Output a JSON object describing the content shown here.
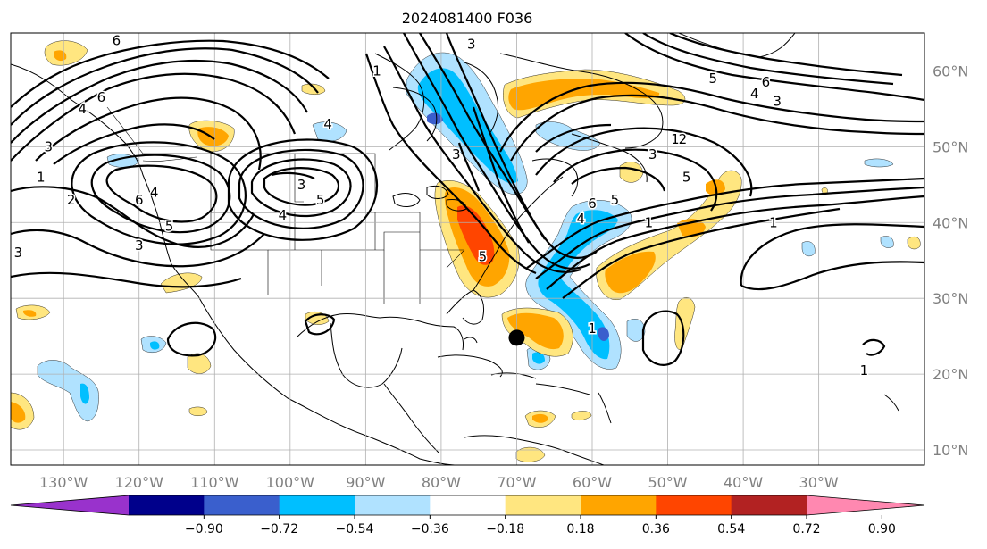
{
  "title": "2024081400 F036",
  "map": {
    "lon_range": [
      -137,
      -16
    ],
    "lat_range": [
      8,
      65
    ],
    "grid": true,
    "lon_labels": [
      {
        "lon": -130,
        "text": "130°W"
      },
      {
        "lon": -120,
        "text": "120°W"
      },
      {
        "lon": -110,
        "text": "110°W"
      },
      {
        "lon": -100,
        "text": "100°W"
      },
      {
        "lon": -90,
        "text": "90°W"
      },
      {
        "lon": -80,
        "text": "80°W"
      },
      {
        "lon": -70,
        "text": "70°W"
      },
      {
        "lon": -60,
        "text": "60°W"
      },
      {
        "lon": -50,
        "text": "50°W"
      },
      {
        "lon": -40,
        "text": "40°W"
      },
      {
        "lon": -30,
        "text": "30°W"
      }
    ],
    "lat_labels": [
      {
        "lat": 10,
        "text": "10°N"
      },
      {
        "lat": 20,
        "text": "20°N"
      },
      {
        "lat": 30,
        "text": "30°N"
      },
      {
        "lat": 40,
        "text": "40°N"
      },
      {
        "lat": 50,
        "text": "50°N"
      },
      {
        "lat": 60,
        "text": "60°N"
      }
    ],
    "storm_marker": {
      "lon": -70,
      "lat": 24.8
    }
  },
  "colorbar": {
    "ticks": [
      "−0.90",
      "−0.72",
      "−0.54",
      "−0.36",
      "−0.18",
      "0.18",
      "0.36",
      "0.54",
      "0.72",
      "0.90"
    ],
    "colors": [
      "#9932cc",
      "#00008b",
      "#3a5fcd",
      "#00bfff",
      "#b0e2ff",
      "#ffffff",
      "#ffe680",
      "#ffa500",
      "#ff4500",
      "#b22222",
      "#ff88b0"
    ]
  },
  "contour_labels": [
    {
      "text": "6",
      "lon": -123,
      "lat": 64
    },
    {
      "text": "6",
      "lon": -125,
      "lat": 56.5
    },
    {
      "text": "4",
      "lon": -127.5,
      "lat": 55
    },
    {
      "text": "3",
      "lon": -132,
      "lat": 50
    },
    {
      "text": "1",
      "lon": -133,
      "lat": 46
    },
    {
      "text": "2",
      "lon": -129,
      "lat": 43
    },
    {
      "text": "6",
      "lon": -120,
      "lat": 43
    },
    {
      "text": "4",
      "lon": -118,
      "lat": 44
    },
    {
      "text": "5",
      "lon": -116,
      "lat": 39.5
    },
    {
      "text": "3",
      "lon": -120,
      "lat": 37
    },
    {
      "text": "3",
      "lon": -136,
      "lat": 36
    },
    {
      "text": "3",
      "lon": -98.5,
      "lat": 45
    },
    {
      "text": "5",
      "lon": -96,
      "lat": 43
    },
    {
      "text": "4",
      "lon": -101,
      "lat": 41
    },
    {
      "text": "4",
      "lon": -95,
      "lat": 53
    },
    {
      "text": "3",
      "lon": -76,
      "lat": 63.5
    },
    {
      "text": "1",
      "lon": -88.5,
      "lat": 60
    },
    {
      "text": "3",
      "lon": -78,
      "lat": 49
    },
    {
      "text": "1",
      "lon": -49,
      "lat": 51
    },
    {
      "text": "3",
      "lon": -52,
      "lat": 49
    },
    {
      "text": "2",
      "lon": -48,
      "lat": 51
    },
    {
      "text": "5",
      "lon": -47.5,
      "lat": 46
    },
    {
      "text": "6",
      "lon": -60,
      "lat": 42.5
    },
    {
      "text": "5",
      "lon": -57,
      "lat": 43
    },
    {
      "text": "4",
      "lon": -61.5,
      "lat": 40.5
    },
    {
      "text": "1",
      "lon": -52.5,
      "lat": 40
    },
    {
      "text": "5",
      "lon": -74.5,
      "lat": 35.5
    },
    {
      "text": "5",
      "lon": -44,
      "lat": 59
    },
    {
      "text": "6",
      "lon": -37,
      "lat": 58.5
    },
    {
      "text": "4",
      "lon": -38.5,
      "lat": 57
    },
    {
      "text": "3",
      "lon": -35.5,
      "lat": 56
    },
    {
      "text": "1",
      "lon": -36,
      "lat": 40
    },
    {
      "text": "1",
      "lon": -60,
      "lat": 26
    },
    {
      "text": "1",
      "lon": -24,
      "lat": 20.5
    }
  ]
}
